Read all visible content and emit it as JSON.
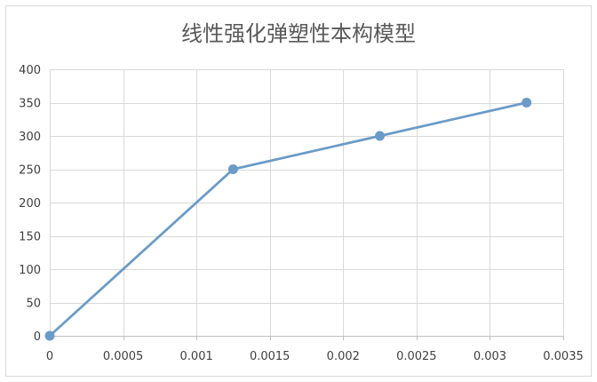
{
  "chart_data": {
    "type": "line",
    "title": "线性强化弹塑性本构模型",
    "xlabel": "",
    "ylabel": "",
    "xlim": [
      0,
      0.0035
    ],
    "ylim": [
      0,
      400
    ],
    "x_ticks": [
      0,
      0.0005,
      0.001,
      0.0015,
      0.002,
      0.0025,
      0.003,
      0.0035
    ],
    "x_tick_labels": [
      "0",
      "0.0005",
      "0.001",
      "0.0015",
      "0.002",
      "0.0025",
      "0.003",
      "0.0035"
    ],
    "y_ticks": [
      0,
      50,
      100,
      150,
      200,
      250,
      300,
      350,
      400
    ],
    "y_tick_labels": [
      "0",
      "50",
      "100",
      "150",
      "200",
      "250",
      "300",
      "350",
      "400"
    ],
    "grid": true,
    "legend": "none",
    "series": [
      {
        "color": "#6b9bc8",
        "x": [
          0,
          0.00125,
          0.00225,
          0.00325
        ],
        "y": [
          0,
          250,
          300,
          350
        ]
      }
    ]
  }
}
